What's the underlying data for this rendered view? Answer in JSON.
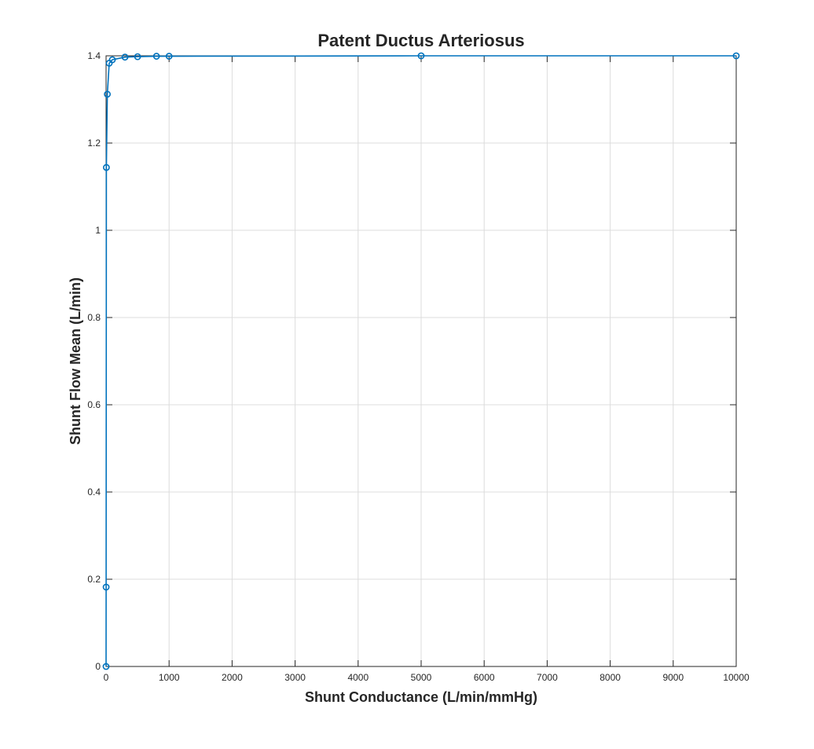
{
  "chart_data": {
    "type": "line",
    "title": "Patent Ductus Arteriosus",
    "xlabel": "Shunt Conductance (L/min/mmHg)",
    "ylabel": "Shunt Flow Mean (L/min)",
    "xlim": [
      0,
      10000
    ],
    "ylim": [
      0,
      1.4
    ],
    "xticks": [
      0,
      1000,
      2000,
      3000,
      4000,
      5000,
      6000,
      7000,
      8000,
      9000,
      10000
    ],
    "xtick_labels": [
      "0",
      "1000",
      "2000",
      "3000",
      "4000",
      "5000",
      "6000",
      "7000",
      "8000",
      "9000",
      "10000"
    ],
    "yticks": [
      0,
      0.2,
      0.4,
      0.6,
      0.8,
      1.0,
      1.2,
      1.4
    ],
    "ytick_labels": [
      "0",
      "0.2",
      "0.4",
      "0.6",
      "0.8",
      "1",
      "1.2",
      "1.4"
    ],
    "grid": true,
    "series": [
      {
        "color": "#0072BD",
        "marker": "circle",
        "x": [
          0,
          1,
          5,
          20,
          50,
          100,
          300,
          500,
          800,
          1000,
          5000,
          10000
        ],
        "y": [
          0.0,
          0.182,
          1.144,
          1.312,
          1.383,
          1.391,
          1.397,
          1.398,
          1.399,
          1.399,
          1.4,
          1.4
        ]
      }
    ]
  }
}
